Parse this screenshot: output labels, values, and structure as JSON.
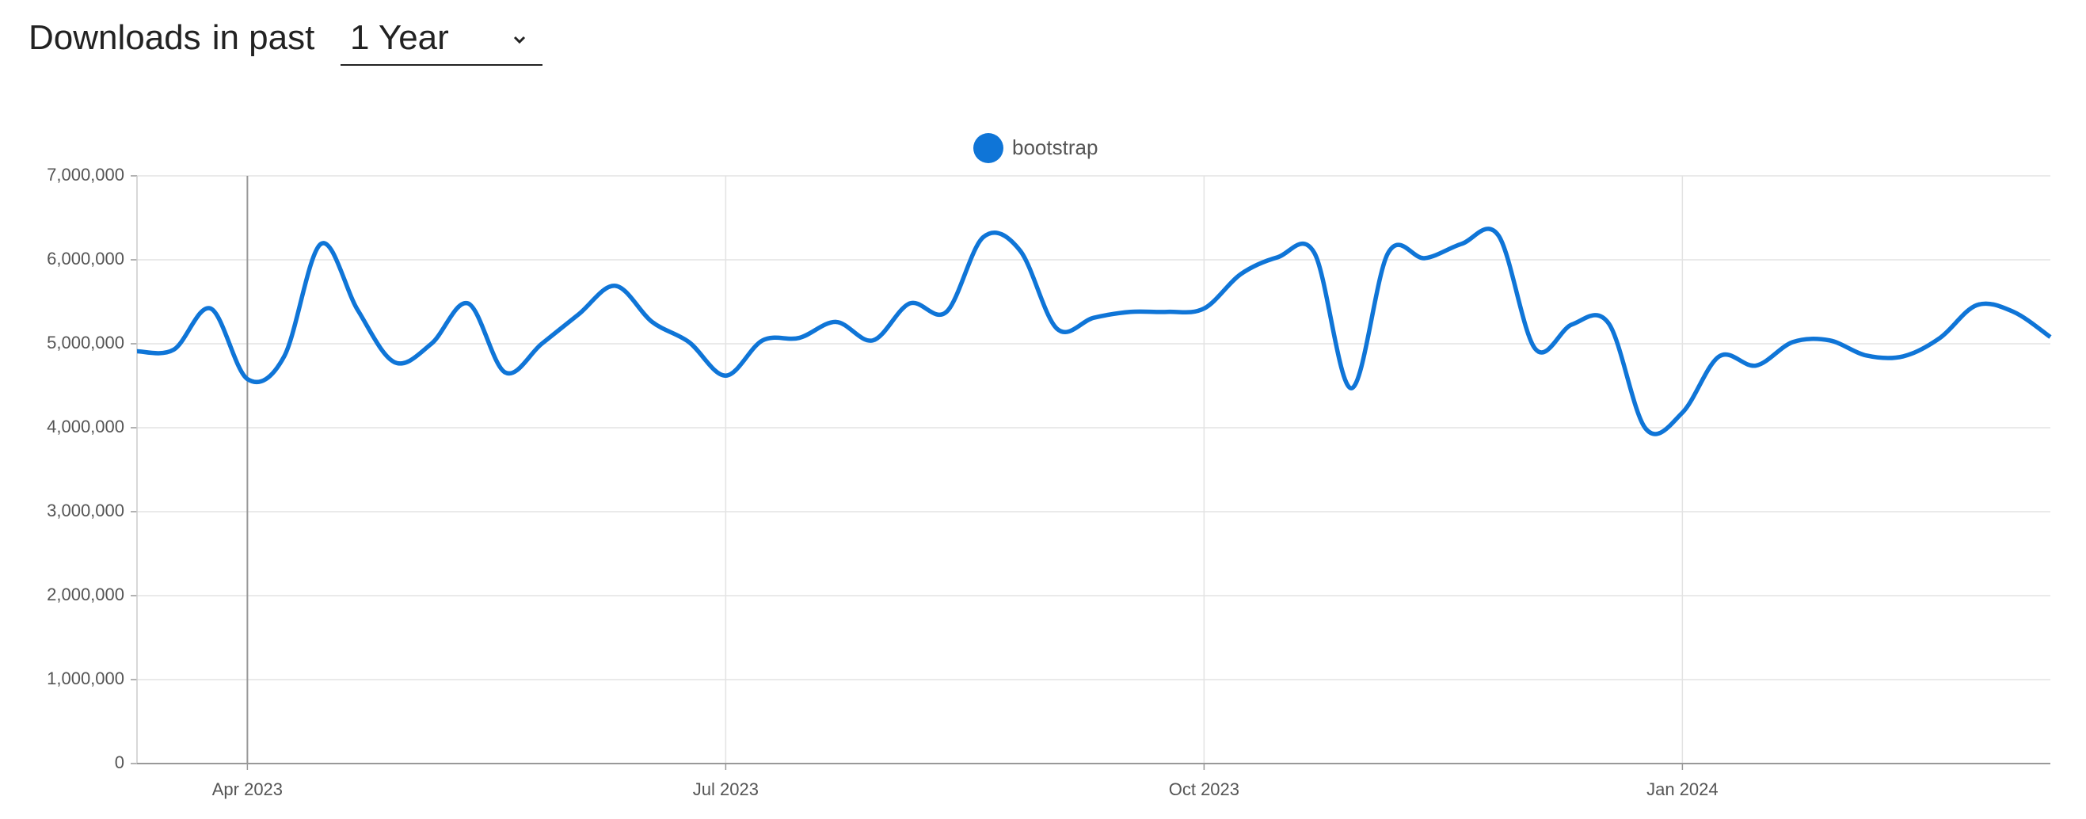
{
  "header": {
    "title": "Downloads",
    "subtitle": "in past",
    "range": "1 Year"
  },
  "chart_data": {
    "type": "line",
    "categories": [
      null,
      null,
      null,
      "Apr 2023",
      null,
      null,
      null,
      null,
      null,
      null,
      null,
      null,
      null,
      null,
      null,
      null,
      "Jul 2023",
      null,
      null,
      null,
      null,
      null,
      null,
      null,
      null,
      null,
      null,
      null,
      null,
      "Oct 2023",
      null,
      null,
      null,
      null,
      null,
      null,
      null,
      null,
      null,
      null,
      null,
      null,
      "Jan 2024",
      null,
      null,
      null,
      null,
      null,
      null,
      null,
      null,
      null,
      null
    ],
    "series": [
      {
        "name": "bootstrap",
        "color": "#0f75d7",
        "values": [
          4910000,
          4930000,
          5420000,
          4580000,
          4850000,
          6190000,
          5400000,
          4780000,
          5000000,
          5480000,
          4660000,
          5000000,
          5350000,
          5690000,
          5260000,
          5020000,
          4620000,
          5040000,
          5070000,
          5260000,
          5040000,
          5480000,
          5380000,
          6270000,
          6110000,
          5180000,
          5310000,
          5380000,
          5380000,
          5420000,
          5830000,
          6030000,
          6080000,
          4470000,
          6080000,
          6020000,
          6190000,
          6290000,
          4940000,
          5230000,
          5240000,
          3990000,
          4180000,
          4850000,
          4740000,
          5020000,
          5040000,
          4860000,
          4850000,
          5070000,
          5460000,
          5380000,
          5080000
        ]
      }
    ],
    "ylim": [
      0,
      7000000
    ],
    "yticks": [
      0,
      {
        "value": 1000000,
        "label": "1,000,000"
      },
      {
        "value": 2000000,
        "label": "2,000,000"
      },
      {
        "value": 3000000,
        "label": "3,000,000"
      },
      {
        "value": 4000000,
        "label": "4,000,000"
      },
      {
        "value": 5000000,
        "label": "5,000,000"
      },
      {
        "value": 6000000,
        "label": "6,000,000"
      },
      {
        "value": 7000000,
        "label": "7,000,000"
      }
    ],
    "grid": true,
    "legend": "top"
  }
}
